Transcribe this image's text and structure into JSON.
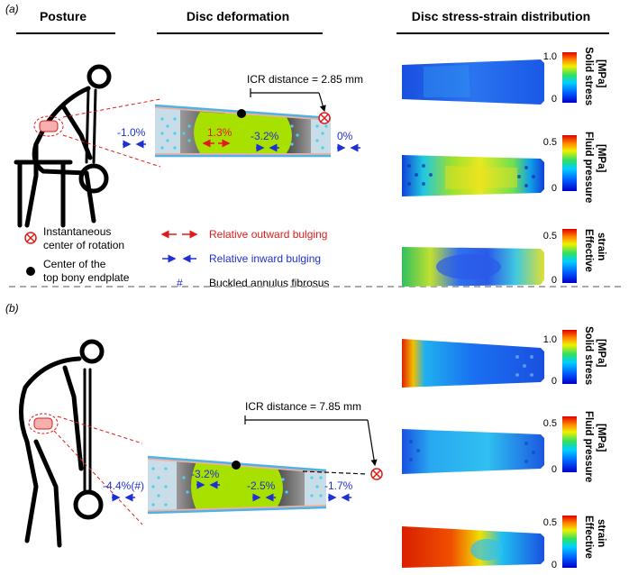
{
  "headers": {
    "posture": "Posture",
    "disc_deformation": "Disc deformation",
    "stress_strain": "Disc stress-strain distribution"
  },
  "panel_a": {
    "tag": "(a)",
    "icr_distance": "ICR distance = 2.85 mm",
    "labels": {
      "left_outer": "-1.0%",
      "center_red": "1.3%",
      "center_blue": "-3.2%",
      "right_outer": "0%"
    }
  },
  "panel_b": {
    "tag": "(b)",
    "icr_distance": "ICR distance = 7.85 mm",
    "labels": {
      "left_outer": "-4.4%(#)",
      "left_inner": "-3.2%",
      "center": "-2.5%",
      "right_outer": "-1.7%"
    }
  },
  "legend": {
    "icr": "Instantaneous center of rotation",
    "icr_line1": "Instantaneous",
    "icr_line2": "center of rotation",
    "endplate_line1": "Center of the",
    "endplate_line2": "top bony endplate",
    "outward": "Relative outward bulging",
    "inward": "Relative inward bulging",
    "buckled_symbol": "#",
    "buckled": "Buckled annulus fibrosus"
  },
  "colorbars": [
    {
      "title_line1": "Solid stress",
      "title_line2": "[MPa]",
      "max": "1.0",
      "min": "0"
    },
    {
      "title_line1": "Fluid pressure",
      "title_line2": "[MPa]",
      "max": "0.5",
      "min": "0"
    },
    {
      "title_line1": "Effective",
      "title_line2": "strain",
      "max": "0.5",
      "min": "0"
    }
  ],
  "colors": {
    "outward": "#e01b1b",
    "inward": "#1f2fd6",
    "nucleus": "#a8e000",
    "endplate": "#4db3e6"
  }
}
